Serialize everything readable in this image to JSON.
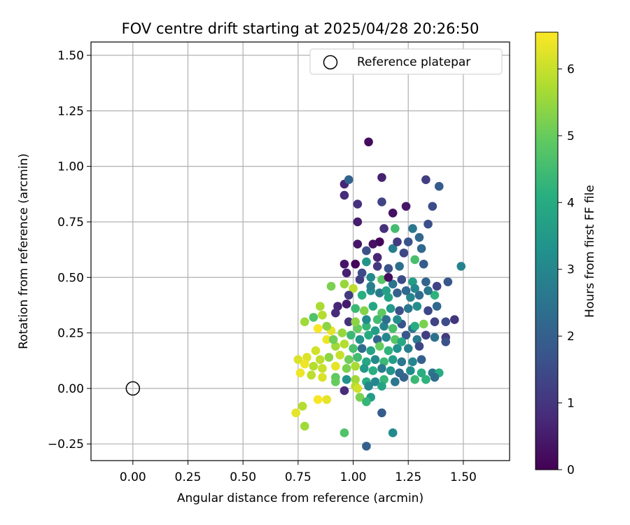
{
  "chart_data": {
    "type": "scatter",
    "title": "FOV centre drift starting at 2025/04/28 20:26:50",
    "xlabel": "Angular distance from reference (arcmin)",
    "ylabel": "Rotation from reference (arcmin)",
    "xlim": [
      -0.19,
      1.71
    ],
    "ylim": [
      -0.325,
      1.56
    ],
    "xticks": [
      "0.00",
      "0.25",
      "0.50",
      "0.75",
      "1.00",
      "1.25",
      "1.50"
    ],
    "yticks": [
      "−0.25",
      "0.00",
      "0.25",
      "0.50",
      "0.75",
      "1.00",
      "1.25",
      "1.50"
    ],
    "grid": true,
    "legend": {
      "placement": "top-right",
      "label": "Reference platepar",
      "marker": "open-circle"
    },
    "reference_point": {
      "x": 0.0,
      "y": 0.0
    },
    "colorbar": {
      "label": "Hours from first FF file",
      "min": 0,
      "max": 6.55,
      "ticks": [
        "0",
        "1",
        "2",
        "3",
        "4",
        "5",
        "6"
      ],
      "colormap": "viridis"
    },
    "points": [
      [
        1.07,
        1.11,
        0.2
      ],
      [
        1.13,
        0.95,
        0.6
      ],
      [
        1.33,
        0.94,
        1.2
      ],
      [
        1.39,
        0.91,
        1.9
      ],
      [
        0.96,
        0.92,
        0.7
      ],
      [
        0.96,
        0.87,
        0.8
      ],
      [
        0.98,
        0.94,
        2.1
      ],
      [
        1.13,
        0.84,
        1.3
      ],
      [
        1.02,
        0.83,
        0.9
      ],
      [
        1.24,
        0.82,
        0.4
      ],
      [
        1.36,
        0.82,
        1.5
      ],
      [
        1.18,
        0.79,
        0.3
      ],
      [
        1.02,
        0.75,
        0.5
      ],
      [
        1.14,
        0.72,
        0.9
      ],
      [
        1.19,
        0.72,
        4.5
      ],
      [
        1.27,
        0.72,
        2.6
      ],
      [
        1.34,
        0.74,
        1.6
      ],
      [
        1.12,
        0.66,
        0.1
      ],
      [
        1.02,
        0.65,
        0.4
      ],
      [
        1.06,
        0.62,
        1.6
      ],
      [
        1.09,
        0.65,
        0.3
      ],
      [
        1.18,
        0.63,
        2.8
      ],
      [
        1.23,
        0.61,
        1.4
      ],
      [
        1.31,
        0.63,
        2.2
      ],
      [
        0.96,
        0.56,
        0.4
      ],
      [
        1.01,
        0.56,
        0.1
      ],
      [
        1.06,
        0.57,
        3.4
      ],
      [
        1.11,
        0.55,
        1.1
      ],
      [
        1.16,
        0.54,
        1.7
      ],
      [
        1.21,
        0.55,
        2.4
      ],
      [
        1.28,
        0.58,
        4.6
      ],
      [
        1.32,
        0.56,
        1.9
      ],
      [
        0.97,
        0.52,
        0.6
      ],
      [
        1.03,
        0.49,
        1.2
      ],
      [
        1.08,
        0.5,
        3.1
      ],
      [
        1.13,
        0.49,
        4.8
      ],
      [
        1.18,
        0.47,
        2.5
      ],
      [
        1.22,
        0.49,
        1.5
      ],
      [
        1.27,
        0.48,
        3.6
      ],
      [
        1.33,
        0.48,
        2.1
      ],
      [
        1.38,
        0.46,
        1.3
      ],
      [
        1.43,
        0.48,
        1.8
      ],
      [
        1.49,
        0.55,
        2.9
      ],
      [
        0.9,
        0.46,
        5.2
      ],
      [
        0.96,
        0.47,
        5.5
      ],
      [
        1.0,
        0.45,
        5.9
      ],
      [
        1.04,
        0.42,
        4.1
      ],
      [
        1.08,
        0.44,
        3.3
      ],
      [
        1.12,
        0.43,
        2.7
      ],
      [
        1.16,
        0.41,
        3.8
      ],
      [
        1.2,
        0.43,
        2.0
      ],
      [
        1.26,
        0.41,
        3.0
      ],
      [
        1.3,
        0.42,
        2.3
      ],
      [
        1.37,
        0.42,
        4.2
      ],
      [
        0.93,
        0.37,
        0.7
      ],
      [
        0.97,
        0.38,
        0.5
      ],
      [
        1.01,
        0.36,
        4.4
      ],
      [
        1.05,
        0.35,
        5.3
      ],
      [
        1.09,
        0.37,
        3.9
      ],
      [
        1.13,
        0.34,
        4.9
      ],
      [
        1.17,
        0.36,
        3.5
      ],
      [
        1.21,
        0.35,
        1.6
      ],
      [
        1.25,
        0.36,
        2.6
      ],
      [
        1.29,
        0.37,
        3.2
      ],
      [
        1.34,
        0.35,
        1.4
      ],
      [
        1.38,
        0.37,
        2.2
      ],
      [
        0.85,
        0.37,
        5.7
      ],
      [
        0.86,
        0.33,
        5.8
      ],
      [
        0.82,
        0.32,
        4.7
      ],
      [
        0.78,
        0.3,
        5.6
      ],
      [
        0.92,
        0.34,
        0.8
      ],
      [
        0.98,
        0.3,
        0.9
      ],
      [
        1.02,
        0.27,
        5.0
      ],
      [
        1.06,
        0.28,
        4.3
      ],
      [
        1.1,
        0.26,
        3.6
      ],
      [
        1.14,
        0.28,
        2.9
      ],
      [
        1.18,
        0.27,
        4.6
      ],
      [
        1.22,
        0.29,
        1.7
      ],
      [
        1.27,
        0.27,
        2.5
      ],
      [
        1.32,
        0.29,
        5.2
      ],
      [
        1.37,
        0.3,
        1.3
      ],
      [
        1.42,
        0.3,
        1.5
      ],
      [
        1.46,
        0.31,
        1.0
      ],
      [
        0.84,
        0.27,
        6.5
      ],
      [
        0.9,
        0.26,
        6.3
      ],
      [
        0.95,
        0.25,
        5.5
      ],
      [
        0.99,
        0.24,
        4.4
      ],
      [
        1.03,
        0.22,
        3.4
      ],
      [
        1.07,
        0.24,
        4.0
      ],
      [
        1.11,
        0.22,
        2.1
      ],
      [
        1.15,
        0.23,
        3.0
      ],
      [
        1.19,
        0.22,
        4.8
      ],
      [
        1.24,
        0.24,
        1.8
      ],
      [
        1.29,
        0.22,
        2.7
      ],
      [
        1.33,
        0.24,
        1.2
      ],
      [
        1.37,
        0.23,
        2.4
      ],
      [
        1.42,
        0.23,
        1.1
      ],
      [
        1.42,
        0.21,
        1.6
      ],
      [
        0.88,
        0.22,
        6.4
      ],
      [
        0.92,
        0.19,
        5.6
      ],
      [
        0.96,
        0.2,
        5.8
      ],
      [
        1.0,
        0.18,
        4.6
      ],
      [
        1.04,
        0.18,
        2.3
      ],
      [
        1.08,
        0.17,
        3.8
      ],
      [
        1.12,
        0.19,
        5.0
      ],
      [
        1.16,
        0.17,
        4.2
      ],
      [
        1.2,
        0.18,
        3.3
      ],
      [
        1.25,
        0.18,
        2.8
      ],
      [
        1.3,
        0.19,
        1.4
      ],
      [
        0.83,
        0.17,
        6.1
      ],
      [
        0.79,
        0.14,
        6.2
      ],
      [
        0.85,
        0.13,
        5.9
      ],
      [
        0.89,
        0.14,
        5.4
      ],
      [
        0.94,
        0.15,
        6.0
      ],
      [
        0.98,
        0.13,
        5.1
      ],
      [
        1.02,
        0.14,
        4.5
      ],
      [
        1.06,
        0.12,
        3.9
      ],
      [
        1.1,
        0.13,
        3.1
      ],
      [
        1.14,
        0.12,
        4.4
      ],
      [
        1.18,
        0.13,
        3.6
      ],
      [
        1.22,
        0.12,
        2.6
      ],
      [
        1.27,
        0.12,
        3.0
      ],
      [
        1.31,
        0.13,
        2.0
      ],
      [
        0.75,
        0.13,
        6.2
      ],
      [
        0.78,
        0.11,
        6.4
      ],
      [
        0.82,
        0.1,
        5.8
      ],
      [
        0.86,
        0.09,
        6.0
      ],
      [
        0.92,
        0.1,
        6.3
      ],
      [
        0.97,
        0.09,
        5.2
      ],
      [
        1.01,
        0.1,
        5.7
      ],
      [
        1.05,
        0.09,
        3.5
      ],
      [
        1.09,
        0.08,
        4.1
      ],
      [
        1.13,
        0.09,
        2.7
      ],
      [
        1.17,
        0.08,
        3.4
      ],
      [
        1.21,
        0.07,
        2.2
      ],
      [
        1.26,
        0.08,
        3.2
      ],
      [
        1.31,
        0.07,
        4.1
      ],
      [
        1.36,
        0.07,
        2.5
      ],
      [
        1.39,
        0.07,
        4.0
      ],
      [
        0.76,
        0.07,
        6.4
      ],
      [
        0.81,
        0.06,
        5.9
      ],
      [
        0.86,
        0.05,
        6.2
      ],
      [
        0.92,
        0.05,
        4.9
      ],
      [
        0.97,
        0.04,
        3.3
      ],
      [
        1.01,
        0.04,
        5.6
      ],
      [
        1.06,
        0.03,
        4.0
      ],
      [
        1.1,
        0.03,
        3.0
      ],
      [
        1.14,
        0.04,
        4.3
      ],
      [
        1.19,
        0.03,
        2.6
      ],
      [
        1.23,
        0.05,
        2.1
      ],
      [
        1.28,
        0.04,
        4.4
      ],
      [
        1.33,
        0.04,
        4.2
      ],
      [
        1.37,
        0.05,
        2.3
      ],
      [
        0.92,
        0.03,
        5.0
      ],
      [
        1.01,
        0.01,
        5.8
      ],
      [
        1.02,
        0.0,
        6.1
      ],
      [
        1.07,
        0.01,
        3.0
      ],
      [
        1.13,
        0.01,
        3.8
      ],
      [
        0.96,
        -0.01,
        0.8
      ],
      [
        1.03,
        -0.04,
        5.2
      ],
      [
        1.08,
        -0.04,
        3.6
      ],
      [
        1.06,
        -0.06,
        4.3
      ],
      [
        0.84,
        -0.05,
        6.5
      ],
      [
        0.88,
        -0.05,
        6.3
      ],
      [
        0.77,
        -0.08,
        5.8
      ],
      [
        0.74,
        -0.11,
        6.3
      ],
      [
        0.78,
        -0.17,
        5.6
      ],
      [
        1.13,
        -0.11,
        1.9
      ],
      [
        0.96,
        -0.2,
        4.7
      ],
      [
        1.18,
        -0.2,
        3.1
      ],
      [
        1.06,
        -0.26,
        2.0
      ],
      [
        1.16,
        0.5,
        0.2
      ],
      [
        1.11,
        0.59,
        0.7
      ],
      [
        1.2,
        0.66,
        1.1
      ],
      [
        1.25,
        0.66,
        1.7
      ],
      [
        1.3,
        0.68,
        2.2
      ],
      [
        1.04,
        0.52,
        1.5
      ],
      [
        1.08,
        0.46,
        2.8
      ],
      [
        1.15,
        0.44,
        3.7
      ],
      [
        1.24,
        0.44,
        2.2
      ],
      [
        1.28,
        0.45,
        3.0
      ],
      [
        1.34,
        0.44,
        2.6
      ],
      [
        0.98,
        0.42,
        1.1
      ],
      [
        1.06,
        0.31,
        3.1
      ],
      [
        1.11,
        0.31,
        4.5
      ],
      [
        1.15,
        0.31,
        2.4
      ],
      [
        1.2,
        0.31,
        3.2
      ],
      [
        0.88,
        0.28,
        5.4
      ],
      [
        0.91,
        0.22,
        5.1
      ],
      [
        1.01,
        0.3,
        5.4
      ],
      [
        1.22,
        0.21,
        3.9
      ],
      [
        1.28,
        0.28,
        4.0
      ]
    ]
  }
}
